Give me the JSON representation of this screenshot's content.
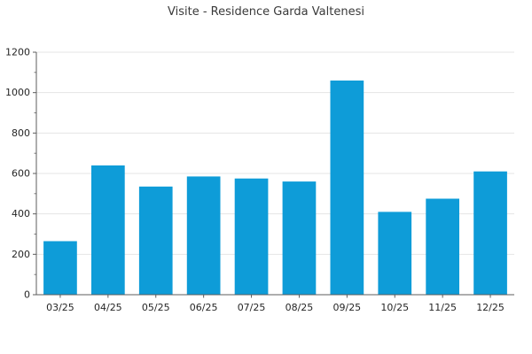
{
  "chart_data": {
    "type": "bar",
    "title": "Visite - Residence Garda Valtenesi",
    "categories": [
      "03/25",
      "04/25",
      "05/25",
      "06/25",
      "07/25",
      "08/25",
      "09/25",
      "10/25",
      "11/25",
      "12/25"
    ],
    "values": [
      265,
      640,
      535,
      585,
      575,
      560,
      1060,
      410,
      475,
      610
    ],
    "xlabel": "",
    "ylabel": "",
    "ylim": [
      0,
      1200
    ],
    "yticks": [
      0,
      200,
      400,
      600,
      800,
      1000,
      1200
    ],
    "yticks_minor": [
      100,
      300,
      500,
      700,
      900,
      1100
    ],
    "grid": "horizontal",
    "legend": "none"
  },
  "colors": {
    "bar": "#0e9cd8",
    "grid": "#e5e5e5",
    "axis": "#5c5c5c",
    "tick_label": "#262626",
    "title": "#3a3a3a",
    "background": "#ffffff"
  }
}
